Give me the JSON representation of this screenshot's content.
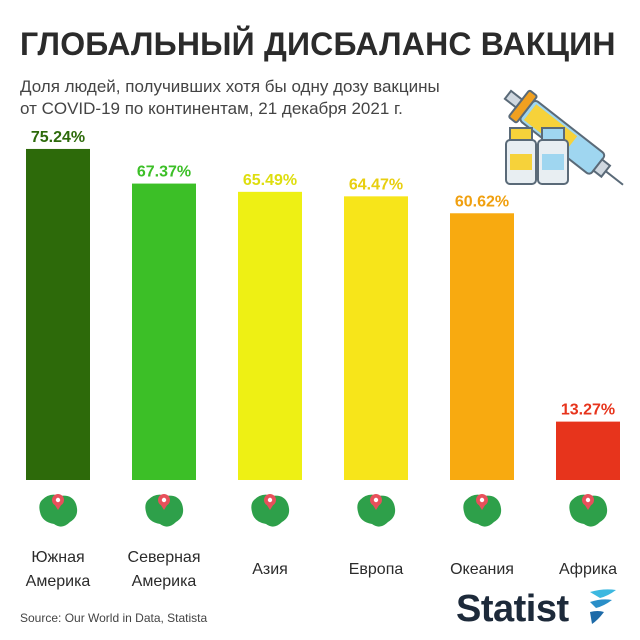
{
  "header": {
    "title": "ГЛОБАЛЬНЫЙ ДИСБАЛАНС ВАКЦИН",
    "subtitle_line1": "Доля людей, получивших хотя бы одну дозу вакцины",
    "subtitle_line2": "от COVID-19 по континентам, 21 декабря 2021 г."
  },
  "chart_data": {
    "type": "bar",
    "title": "ГЛОБАЛЬНЫЙ ДИСБАЛАНС ВАКЦИН",
    "categories": [
      "Южная Америка",
      "Северная Америка",
      "Азия",
      "Европа",
      "Океания",
      "Африка"
    ],
    "category_lines": [
      [
        "Южная",
        "Америка"
      ],
      [
        "Северная",
        "Америка"
      ],
      [
        "Азия"
      ],
      [
        "Европа"
      ],
      [
        "Океания"
      ],
      [
        "Африка"
      ]
    ],
    "values": [
      75.24,
      67.37,
      65.49,
      64.47,
      60.62,
      13.27
    ],
    "value_labels": [
      "75.24%",
      "67.37%",
      "65.49%",
      "64.47%",
      "60.62%",
      "13.27%"
    ],
    "unit": "%",
    "colors": [
      "#2d6a0a",
      "#3cbf27",
      "#eef014",
      "#f7e51a",
      "#f8aa10",
      "#e7341c"
    ],
    "label_colors": [
      "#2d6a0a",
      "#3cbf27",
      "#dede0e",
      "#e8cf10",
      "#f0a010",
      "#e7341c"
    ],
    "icons": [
      "south-america-map-icon",
      "north-america-map-icon",
      "asia-map-icon",
      "europe-map-icon",
      "oceania-map-icon",
      "africa-map-icon"
    ],
    "ylim": [
      0,
      100
    ],
    "grid": false,
    "legend": "none"
  },
  "footer": {
    "source": "Source: Our World in Data, Statista",
    "logo": "Statist",
    "logo_mark": "statista-logo-mark"
  },
  "decor": {
    "illustration": "vaccine-syringe-icon",
    "map_color": "#2ea04a",
    "pin_color": "#e8505b"
  }
}
